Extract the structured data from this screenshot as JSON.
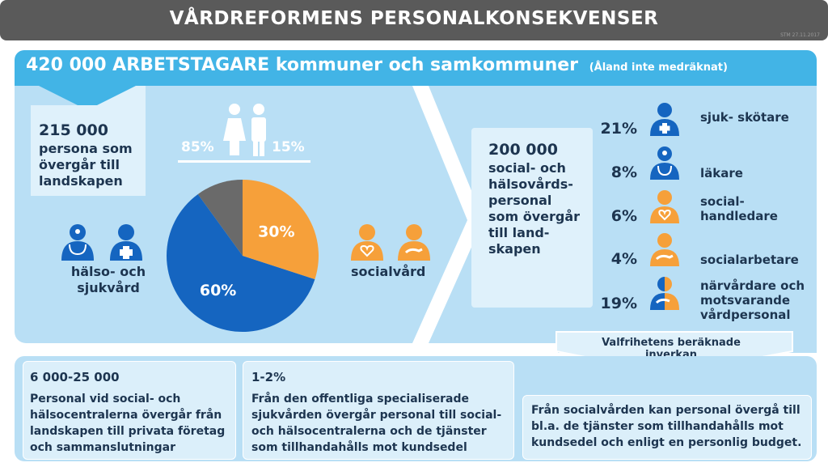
{
  "title": "VÅRDREFORMENS PERSONALKONSEKVENSER",
  "date_stamp": "STM 27.11.2017",
  "header": {
    "main": "420 000 ARBETSTAGARE kommuner och samkommuner",
    "note": "(Åland inte medräknat)"
  },
  "left": {
    "count": "215 000",
    "desc": "persona som övergår till landskapen",
    "gender_female": "85%",
    "gender_male": "15%",
    "health_label": "hälso- och sjukvård",
    "social_label": "socialvård"
  },
  "chart_data": {
    "type": "pie",
    "slices": [
      {
        "label": "60%",
        "value": 60,
        "color": "#1565c0"
      },
      {
        "label": "30%",
        "value": 30,
        "color": "#f6a03a"
      },
      {
        "label": "",
        "value": 10,
        "color": "#6a6a6a"
      }
    ]
  },
  "right": {
    "count": "200 000",
    "desc": "social- och hälsovårds- personal som övergår till land- skapen",
    "categories": [
      {
        "pct": "21%",
        "label": "sjuk- skötare"
      },
      {
        "pct": "8%",
        "label": "läkare"
      },
      {
        "pct": "6%",
        "label": "social- handledare"
      },
      {
        "pct": "4%",
        "label": "socialarbetare"
      },
      {
        "pct": "19%",
        "label": "närvårdare och motsvarande vårdpersonal"
      }
    ]
  },
  "valfrihet": "Valfrihetens beräknade inverkan",
  "bottom": {
    "box1": {
      "title": "6 000-25 000",
      "text": "Personal vid social- och hälsocentralerna övergår från landskapen till privata företag och sammanslutningar"
    },
    "box2": {
      "title": "1-2%",
      "text": "Från den offentliga specialiserade sjukvården övergår personal till social- och hälsocentralerna och de tjänster som tillhandahålls mot kundsedel"
    },
    "box3": {
      "text": "Från socialvården kan personal övergå till bl.a. de tjänster som tillhandahålls mot kundsedel och enligt en personlig budget."
    }
  },
  "colors": {
    "dark_blue": "#1565c0",
    "orange": "#f6a03a",
    "gray": "#6a6a6a",
    "header_blue": "#42b4e6"
  }
}
